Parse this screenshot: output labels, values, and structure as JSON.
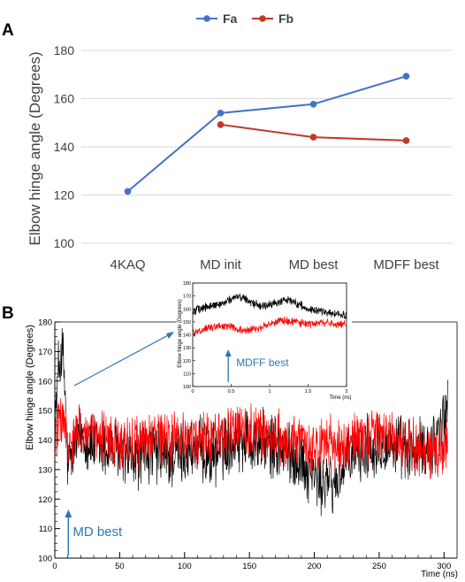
{
  "chart_data": [
    {
      "panel": "A",
      "type": "line",
      "categories": [
        "4KAQ",
        "MD init",
        "MD best",
        "MDFF best"
      ],
      "ylabel": "Elbow hinge angle (Degrees)",
      "ylim": [
        100,
        180
      ],
      "yticks": [
        100,
        120,
        140,
        160,
        180
      ],
      "grid": true,
      "legend_position": "top",
      "series": [
        {
          "name": "Fa",
          "color": "#4472c4",
          "values": [
            121.5,
            154,
            157.7,
            169.3
          ]
        },
        {
          "name": "Fb",
          "color": "#c0392b",
          "values": [
            null,
            149.2,
            144,
            142.6
          ]
        }
      ]
    },
    {
      "panel": "B",
      "type": "line",
      "xlabel": "Time (ns)",
      "ylabel": "Elbow hinge angle (Degrees)",
      "xlim": [
        0,
        310
      ],
      "ylim": [
        100,
        180
      ],
      "xticks": [
        0,
        50,
        100,
        150,
        200,
        250,
        300
      ],
      "yticks": [
        100,
        110,
        120,
        130,
        140,
        150,
        160,
        170,
        180
      ],
      "series": [
        {
          "color": "#000000",
          "x": [
            0,
            3,
            6,
            8,
            10,
            15,
            20,
            25,
            30,
            40,
            50,
            60,
            70,
            80,
            90,
            100,
            110,
            120,
            130,
            140,
            150,
            160,
            170,
            180,
            190,
            200,
            205,
            210,
            215,
            220,
            230,
            240,
            250,
            260,
            270,
            280,
            290,
            295,
            300,
            303
          ],
          "y": [
            145,
            165,
            170,
            155,
            130,
            138,
            142,
            140,
            138,
            137,
            136,
            133,
            136,
            135,
            134,
            136,
            137,
            134,
            138,
            141,
            140,
            139,
            137,
            136,
            133,
            128,
            125,
            127,
            124,
            129,
            134,
            137,
            139,
            138,
            137,
            136,
            138,
            142,
            148,
            152
          ]
        },
        {
          "color": "#ff0000",
          "x": [
            0,
            5,
            8,
            10,
            15,
            20,
            25,
            30,
            40,
            50,
            60,
            70,
            80,
            90,
            100,
            110,
            120,
            130,
            140,
            150,
            160,
            170,
            180,
            190,
            200,
            210,
            220,
            230,
            240,
            250,
            260,
            270,
            280,
            290,
            300,
            303
          ],
          "y": [
            142,
            147,
            145,
            135,
            140,
            143,
            142,
            141,
            140,
            139,
            139,
            141,
            140,
            139,
            141,
            140,
            141,
            142,
            143,
            144,
            142,
            141,
            140,
            139,
            138,
            139,
            138,
            140,
            141,
            142,
            141,
            139,
            137,
            136,
            138,
            140
          ]
        }
      ],
      "annotations": [
        {
          "text": "MD best",
          "color": "#2e75b6",
          "x": 5
        }
      ],
      "inset": {
        "xlabel": "Time (ns)",
        "ylabel": "Elbow hinge angle (Degrees)",
        "xlim": [
          0,
          2
        ],
        "ylim": [
          100,
          180
        ],
        "xticks": [
          0,
          0.5,
          1,
          1.5,
          2
        ],
        "xtick_labels": [
          "0",
          "0.5",
          "1",
          "1.5",
          "2"
        ],
        "yticks": [
          100,
          110,
          120,
          130,
          140,
          150,
          160,
          170,
          180
        ],
        "series": [
          {
            "color": "#000000",
            "x": [
              0,
              0.1,
              0.2,
              0.3,
              0.4,
              0.5,
              0.6,
              0.7,
              0.8,
              0.9,
              1.0,
              1.1,
              1.2,
              1.3,
              1.4,
              1.5,
              1.6,
              1.7,
              1.8,
              1.9,
              2.0
            ],
            "y": [
              158,
              160,
              162,
              163,
              165,
              168,
              170,
              167,
              164,
              162,
              163,
              165,
              167,
              166,
              163,
              160,
              159,
              158,
              157,
              156,
              155
            ]
          },
          {
            "color": "#ff0000",
            "x": [
              0,
              0.1,
              0.2,
              0.3,
              0.4,
              0.5,
              0.6,
              0.7,
              0.8,
              0.9,
              1.0,
              1.1,
              1.2,
              1.3,
              1.4,
              1.5,
              1.6,
              1.7,
              1.8,
              1.9,
              2.0
            ],
            "y": [
              142,
              143,
              145,
              146,
              147,
              146,
              144,
              143,
              144,
              146,
              148,
              150,
              151,
              150,
              149,
              148,
              149,
              150,
              149,
              148,
              148
            ]
          }
        ],
        "annotations": [
          {
            "text": "MDFF best",
            "color": "#2e75b6",
            "x": 0.6
          }
        ]
      }
    }
  ]
}
